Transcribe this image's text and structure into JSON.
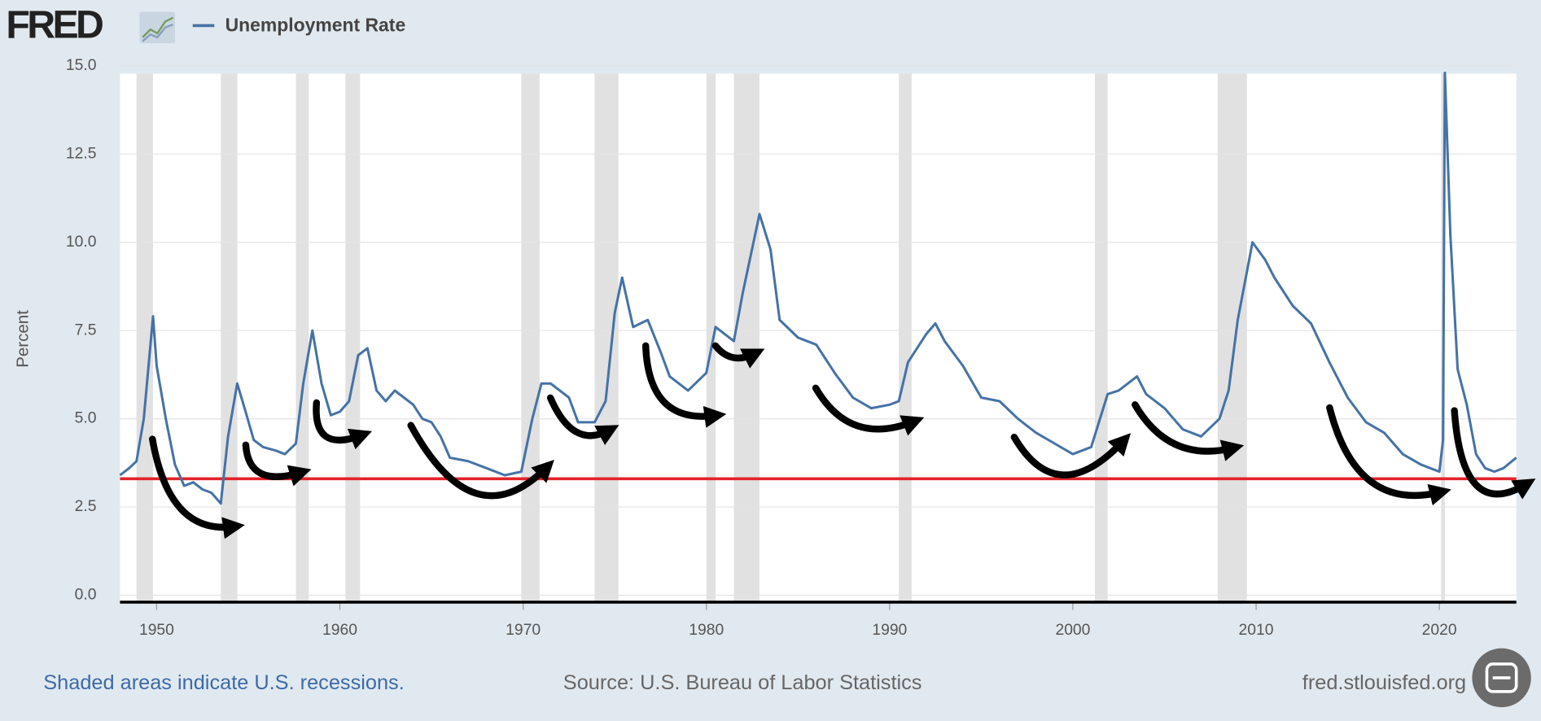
{
  "logo": "FRED",
  "chart_data": {
    "type": "line",
    "y_label": "Percent",
    "note": "Shaded areas indicate U.S. recessions.",
    "source": "Source: U.S. Bureau of Labor Statistics",
    "site": "fred.stlouisfed.org",
    "xlim": [
      1948.0,
      2024.2
    ],
    "ylim": [
      0,
      15
    ],
    "xticks": [
      1950,
      1960,
      1970,
      1980,
      1990,
      2000,
      2010,
      2020
    ],
    "yticks": [
      {
        "value": 0,
        "label": "0.0"
      },
      2.5,
      {
        "value": 5,
        "label": "5.0"
      },
      7.5,
      {
        "value": 10,
        "label": "10.0"
      },
      12.5,
      {
        "value": 15,
        "label": "15.0"
      }
    ],
    "grid": true,
    "recession_color": "#e1e1e1",
    "recessions": [
      [
        1948.9,
        1949.8
      ],
      [
        1953.5,
        1954.4
      ],
      [
        1957.6,
        1958.3
      ],
      [
        1960.3,
        1961.1
      ],
      [
        1969.9,
        1970.9
      ],
      [
        1973.9,
        1975.2
      ],
      [
        1980.0,
        1980.5
      ],
      [
        1981.5,
        1982.9
      ],
      [
        1990.5,
        1991.2
      ],
      [
        2001.2,
        2001.9
      ],
      [
        2007.9,
        2009.5
      ],
      [
        2020.1,
        2020.3
      ]
    ],
    "reference_line": {
      "value": 3.3,
      "color": "#e3242b"
    },
    "x": [
      1948.0,
      1948.5,
      1948.9,
      1949.3,
      1949.8,
      1950.0,
      1950.5,
      1951.0,
      1951.5,
      1952.0,
      1952.5,
      1953.0,
      1953.5,
      1953.9,
      1954.4,
      1954.8,
      1955.3,
      1955.8,
      1956.5,
      1957.0,
      1957.6,
      1958.0,
      1958.5,
      1959.0,
      1959.5,
      1960.0,
      1960.5,
      1961.0,
      1961.5,
      1962.0,
      1962.5,
      1963.0,
      1963.5,
      1964.0,
      1964.5,
      1965.0,
      1965.5,
      1966.0,
      1967.0,
      1968.0,
      1969.0,
      1969.9,
      1970.5,
      1971.0,
      1971.5,
      1972.0,
      1972.5,
      1973.0,
      1973.9,
      1974.5,
      1975.0,
      1975.4,
      1976.0,
      1976.8,
      1977.5,
      1978.0,
      1979.0,
      1980.0,
      1980.5,
      1981.0,
      1981.5,
      1982.0,
      1982.9,
      1983.5,
      1984.0,
      1985.0,
      1986.0,
      1987.0,
      1988.0,
      1989.0,
      1990.0,
      1990.5,
      1991.0,
      1992.0,
      1992.5,
      1993.0,
      1994.0,
      1995.0,
      1996.0,
      1997.0,
      1998.0,
      1999.0,
      2000.0,
      2001.0,
      2001.9,
      2002.5,
      2003.5,
      2004.0,
      2005.0,
      2006.0,
      2007.0,
      2008.0,
      2008.5,
      2009.0,
      2009.8,
      2010.5,
      2011.0,
      2012.0,
      2013.0,
      2014.0,
      2015.0,
      2016.0,
      2017.0,
      2018.0,
      2019.0,
      2020.0,
      2020.2,
      2020.3,
      2020.6,
      2021.0,
      2021.5,
      2022.0,
      2022.5,
      2023.0,
      2023.5,
      2024.2
    ],
    "series": [
      {
        "name": "Unemployment Rate",
        "color": "#4572a7",
        "values": [
          3.4,
          3.6,
          3.8,
          5.0,
          7.9,
          6.5,
          5.0,
          3.7,
          3.1,
          3.2,
          3.0,
          2.9,
          2.6,
          4.5,
          6.0,
          5.3,
          4.4,
          4.2,
          4.1,
          4.0,
          4.3,
          6.0,
          7.5,
          6.0,
          5.1,
          5.2,
          5.5,
          6.8,
          7.0,
          5.8,
          5.5,
          5.8,
          5.6,
          5.4,
          5.0,
          4.9,
          4.5,
          3.9,
          3.8,
          3.6,
          3.4,
          3.5,
          5.0,
          6.0,
          6.0,
          5.8,
          5.6,
          4.9,
          4.9,
          5.5,
          8.0,
          9.0,
          7.6,
          7.8,
          6.9,
          6.2,
          5.8,
          6.3,
          7.6,
          7.4,
          7.2,
          8.6,
          10.8,
          9.8,
          7.8,
          7.3,
          7.1,
          6.3,
          5.6,
          5.3,
          5.4,
          5.5,
          6.6,
          7.4,
          7.7,
          7.2,
          6.5,
          5.6,
          5.5,
          5.0,
          4.6,
          4.3,
          4.0,
          4.2,
          5.7,
          5.8,
          6.2,
          5.7,
          5.3,
          4.7,
          4.5,
          5.0,
          5.8,
          7.8,
          10.0,
          9.5,
          9.0,
          8.2,
          7.7,
          6.6,
          5.6,
          4.9,
          4.6,
          4.0,
          3.7,
          3.5,
          4.4,
          14.8,
          10.2,
          6.4,
          5.4,
          4.0,
          3.6,
          3.5,
          3.6,
          3.9
        ]
      }
    ]
  }
}
